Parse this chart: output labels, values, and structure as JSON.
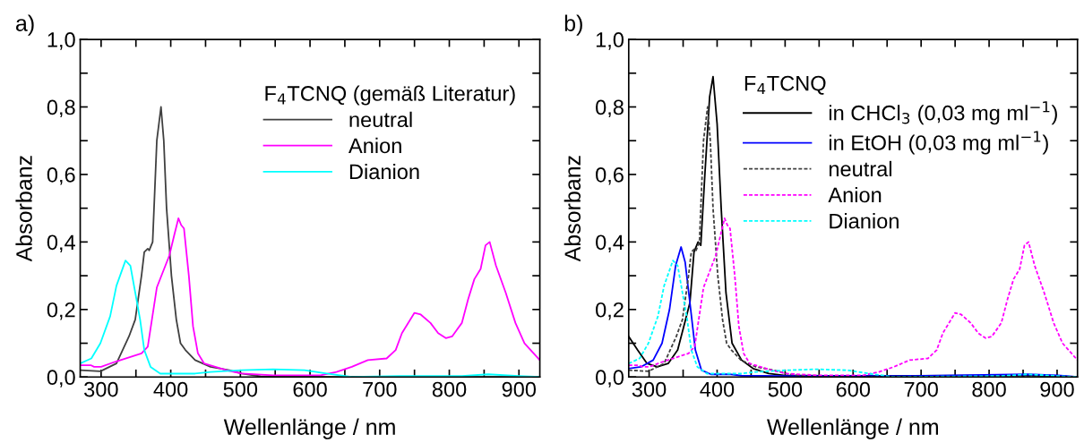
{
  "chart_data": [
    {
      "type": "line",
      "xlabel": "Wellenlänge / nm",
      "ylabel": "Absorbanz",
      "legend_title": "F$_{4}$TCNQ (gemäß Literatur)",
      "legend": "top right",
      "grid": false,
      "annotations": [
        "a)"
      ],
      "xlim": [
        270,
        930
      ],
      "ylim": [
        0,
        1.0
      ],
      "xticks": [
        300,
        {
          "value": 350,
          "label": null
        },
        400,
        {
          "value": 450,
          "label": null
        },
        500,
        {
          "value": 550,
          "label": null
        },
        600,
        {
          "value": 650,
          "label": null
        },
        700,
        {
          "value": 750,
          "label": null
        },
        800,
        {
          "value": 850,
          "label": null
        },
        900
      ],
      "yticks": [
        {
          "value": 0.0,
          "label": "0,0"
        },
        {
          "value": 0.1,
          "label": null
        },
        {
          "value": 0.2,
          "label": "0,2"
        },
        {
          "value": 0.3,
          "label": null
        },
        {
          "value": 0.4,
          "label": "0,4"
        },
        {
          "value": 0.5,
          "label": null
        },
        {
          "value": 0.6,
          "label": "0,6"
        },
        {
          "value": 0.7,
          "label": null
        },
        {
          "value": 0.8,
          "label": "0,8"
        },
        {
          "value": 0.9,
          "label": null
        },
        {
          "value": 1.0,
          "label": "1,0"
        }
      ],
      "series": [
        {
          "name": "neutral",
          "color": "#404040",
          "line_style": "solid",
          "x": [
            270,
            299,
            322,
            340,
            349,
            358,
            362,
            367,
            369,
            374,
            380,
            386,
            390,
            394,
            401,
            408,
            414,
            421,
            435,
            457,
            484,
            502,
            529,
            638,
            930
          ],
          "values": [
            0.02,
            0.017,
            0.04,
            0.12,
            0.17,
            0.3,
            0.37,
            0.38,
            0.375,
            0.4,
            0.7,
            0.8,
            0.7,
            0.5,
            0.3,
            0.17,
            0.1,
            0.08,
            0.05,
            0.03,
            0.02,
            0.01,
            0.002,
            0.0,
            0.0
          ]
        },
        {
          "name": "Anion",
          "color": "#ff00ff",
          "line_style": "solid",
          "x": [
            270,
            285,
            290,
            300,
            320,
            358,
            367,
            380,
            398,
            405,
            411,
            415,
            419,
            426,
            432,
            439,
            448,
            480,
            502,
            547,
            615,
            638,
            660,
            683,
            710,
            723,
            732,
            750,
            759,
            773,
            784,
            795,
            804,
            818,
            827,
            836,
            845,
            852,
            858,
            867,
            881,
            895,
            908,
            930
          ],
          "values": [
            0.035,
            0.035,
            0.03,
            0.03,
            0.045,
            0.07,
            0.09,
            0.265,
            0.36,
            0.42,
            0.47,
            0.45,
            0.44,
            0.3,
            0.15,
            0.07,
            0.04,
            0.02,
            0.01,
            0.005,
            0.005,
            0.015,
            0.03,
            0.05,
            0.055,
            0.08,
            0.13,
            0.19,
            0.185,
            0.16,
            0.13,
            0.115,
            0.12,
            0.16,
            0.23,
            0.29,
            0.32,
            0.39,
            0.4,
            0.33,
            0.25,
            0.16,
            0.1,
            0.05
          ]
        },
        {
          "name": "Dianion",
          "color": "#00ffff",
          "line_style": "solid",
          "x": [
            270,
            286,
            299,
            313,
            322,
            335,
            342,
            349,
            356,
            362,
            371,
            385,
            412,
            435,
            457,
            502,
            547,
            592,
            624,
            660,
            728,
            818,
            856,
            900,
            930
          ],
          "values": [
            0.04,
            0.055,
            0.1,
            0.18,
            0.27,
            0.345,
            0.33,
            0.25,
            0.17,
            0.08,
            0.03,
            0.01,
            0.01,
            0.01,
            0.015,
            0.02,
            0.023,
            0.02,
            0.01,
            0.0,
            0.003,
            0.003,
            0.008,
            0.003,
            0.0
          ]
        }
      ]
    },
    {
      "type": "line",
      "xlabel": "Wellenlänge / nm",
      "ylabel": "Absorbanz",
      "legend_title": "F$_{4}$TCNQ",
      "legend": "top right",
      "grid": false,
      "annotations": [
        "b)"
      ],
      "xlim": [
        270,
        930
      ],
      "ylim": [
        0,
        1.0
      ],
      "xticks": [
        300,
        {
          "value": 350,
          "label": null
        },
        400,
        {
          "value": 450,
          "label": null
        },
        500,
        {
          "value": 550,
          "label": null
        },
        600,
        {
          "value": 650,
          "label": null
        },
        700,
        {
          "value": 750,
          "label": null
        },
        800,
        {
          "value": 850,
          "label": null
        },
        900
      ],
      "yticks": [
        {
          "value": 0.0,
          "label": "0,0"
        },
        {
          "value": 0.1,
          "label": null
        },
        {
          "value": 0.2,
          "label": "0,2"
        },
        {
          "value": 0.3,
          "label": null
        },
        {
          "value": 0.4,
          "label": "0,4"
        },
        {
          "value": 0.5,
          "label": null
        },
        {
          "value": 0.6,
          "label": "0,6"
        },
        {
          "value": 0.7,
          "label": null
        },
        {
          "value": 0.8,
          "label": "0,8"
        },
        {
          "value": 0.9,
          "label": null
        },
        {
          "value": 1.0,
          "label": "1,0"
        }
      ],
      "series": [
        {
          "name": "in CHCl$_{3}$ (0,03 mg ml$^{−1}$)",
          "color": "#000000",
          "line_style": "solid",
          "x": [
            270,
            283,
            297,
            312,
            328,
            342,
            351,
            360,
            366,
            372,
            376,
            382,
            389,
            394,
            400,
            406,
            413,
            422,
            436,
            453,
            476,
            498,
            588,
            856,
            930
          ],
          "values": [
            0.12,
            0.08,
            0.04,
            0.03,
            0.04,
            0.08,
            0.15,
            0.22,
            0.37,
            0.4,
            0.39,
            0.6,
            0.83,
            0.89,
            0.75,
            0.5,
            0.25,
            0.1,
            0.05,
            0.025,
            0.01,
            0.005,
            0.003,
            0.005,
            0.0
          ]
        },
        {
          "name": "in EtOH (0,03 mg ml$^{−1}$)",
          "color": "#0000ff",
          "line_style": "solid",
          "x": [
            270,
            288,
            306,
            319,
            330,
            339,
            347,
            353,
            360,
            368,
            377,
            391,
            418,
            436,
            498,
            677,
            856,
            901,
            930
          ],
          "values": [
            0.025,
            0.03,
            0.05,
            0.1,
            0.2,
            0.33,
            0.385,
            0.34,
            0.22,
            0.08,
            0.02,
            0.008,
            0.008,
            0.004,
            0.003,
            0.003,
            0.008,
            0.005,
            0.0
          ]
        },
        {
          "name": "neutral",
          "color": "#404040",
          "line_style": "dashed",
          "x": [
            270,
            299,
            322,
            340,
            349,
            358,
            362,
            367,
            369,
            374,
            380,
            386,
            390,
            394,
            401,
            408,
            414,
            421,
            435,
            457,
            484,
            502,
            529,
            638,
            930
          ],
          "values": [
            0.02,
            0.017,
            0.04,
            0.12,
            0.17,
            0.3,
            0.37,
            0.38,
            0.375,
            0.4,
            0.7,
            0.8,
            0.7,
            0.5,
            0.3,
            0.17,
            0.1,
            0.08,
            0.05,
            0.03,
            0.02,
            0.01,
            0.002,
            0.0,
            0.0
          ]
        },
        {
          "name": "Anion",
          "color": "#ff00ff",
          "line_style": "dashed",
          "x": [
            270,
            285,
            290,
            300,
            320,
            358,
            367,
            380,
            398,
            405,
            411,
            415,
            419,
            426,
            432,
            439,
            448,
            480,
            502,
            547,
            615,
            638,
            660,
            683,
            710,
            723,
            732,
            750,
            759,
            773,
            784,
            795,
            804,
            818,
            827,
            836,
            845,
            852,
            858,
            867,
            881,
            895,
            908,
            930
          ],
          "values": [
            0.035,
            0.035,
            0.03,
            0.03,
            0.045,
            0.07,
            0.09,
            0.265,
            0.36,
            0.42,
            0.47,
            0.45,
            0.44,
            0.3,
            0.15,
            0.07,
            0.04,
            0.02,
            0.01,
            0.005,
            0.005,
            0.015,
            0.03,
            0.05,
            0.055,
            0.08,
            0.13,
            0.19,
            0.185,
            0.16,
            0.13,
            0.115,
            0.12,
            0.16,
            0.23,
            0.29,
            0.32,
            0.39,
            0.4,
            0.33,
            0.25,
            0.16,
            0.1,
            0.05
          ]
        },
        {
          "name": "Dianion",
          "color": "#00ffff",
          "line_style": "dashed",
          "x": [
            270,
            286,
            299,
            313,
            322,
            335,
            342,
            349,
            356,
            362,
            371,
            385,
            412,
            435,
            457,
            502,
            547,
            592,
            624,
            660,
            818,
            856,
            900,
            930
          ],
          "values": [
            0.04,
            0.055,
            0.1,
            0.18,
            0.27,
            0.345,
            0.33,
            0.25,
            0.17,
            0.08,
            0.03,
            0.01,
            0.01,
            0.01,
            0.015,
            0.02,
            0.023,
            0.02,
            0.01,
            0.0,
            0.003,
            0.008,
            0.003,
            0.0
          ]
        }
      ]
    }
  ]
}
